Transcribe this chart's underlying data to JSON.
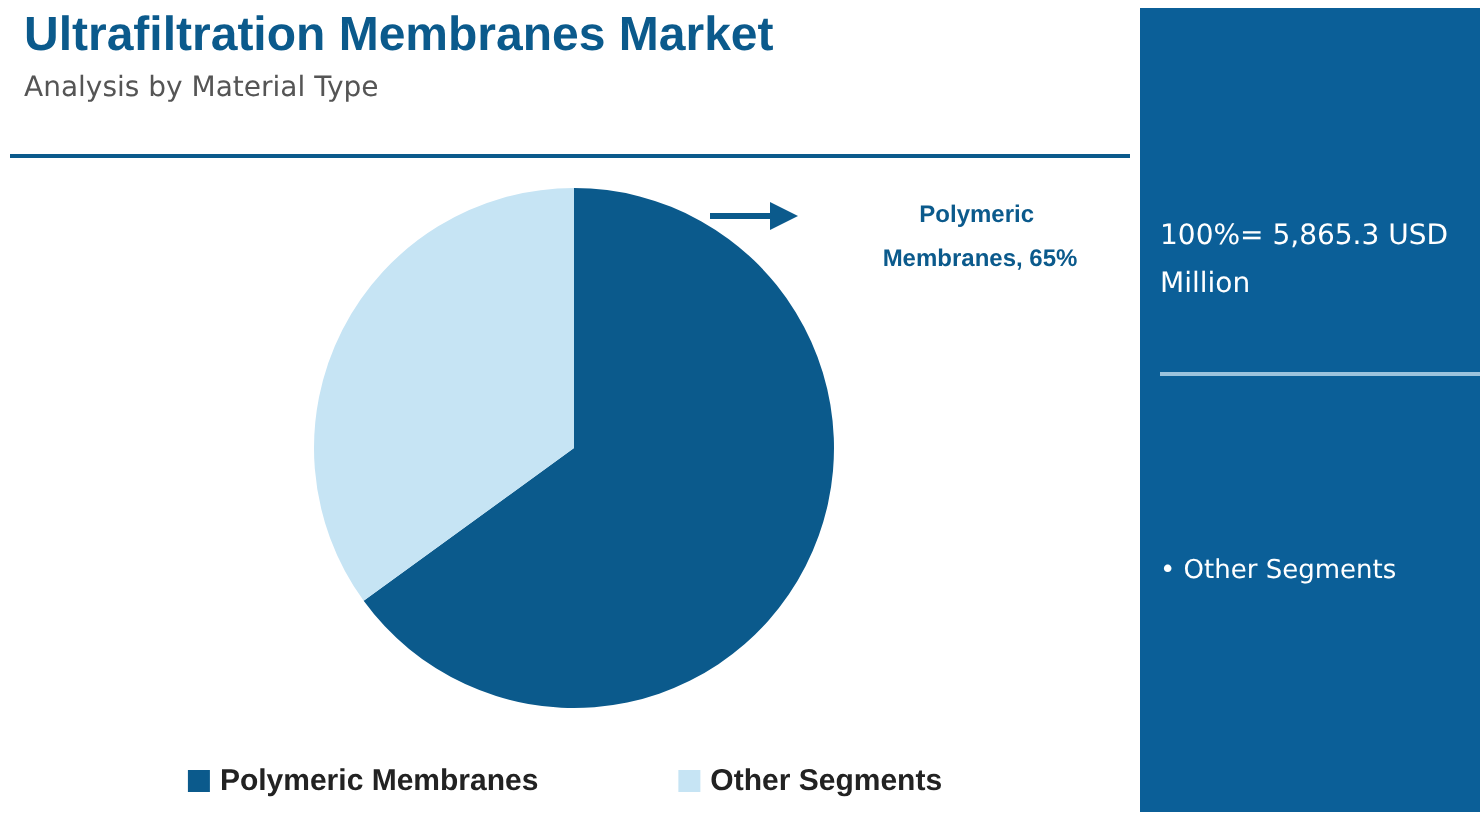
{
  "chart_data": {
    "type": "pie",
    "title": "Ultrafiltration Membranes Market",
    "subtitle": "Analysis by Material Type",
    "categories": [
      "Polymeric Membranes",
      "Other Segments"
    ],
    "values": [
      65,
      35
    ],
    "colors": [
      "#0b5a8c",
      "#c6e4f4"
    ],
    "value_labels": [
      "Polymeric Membranes, 65%",
      null
    ],
    "legend": "bottom",
    "annotations": [
      "100%= 5,865.3 USD Million",
      "• Other Segments"
    ]
  }
}
